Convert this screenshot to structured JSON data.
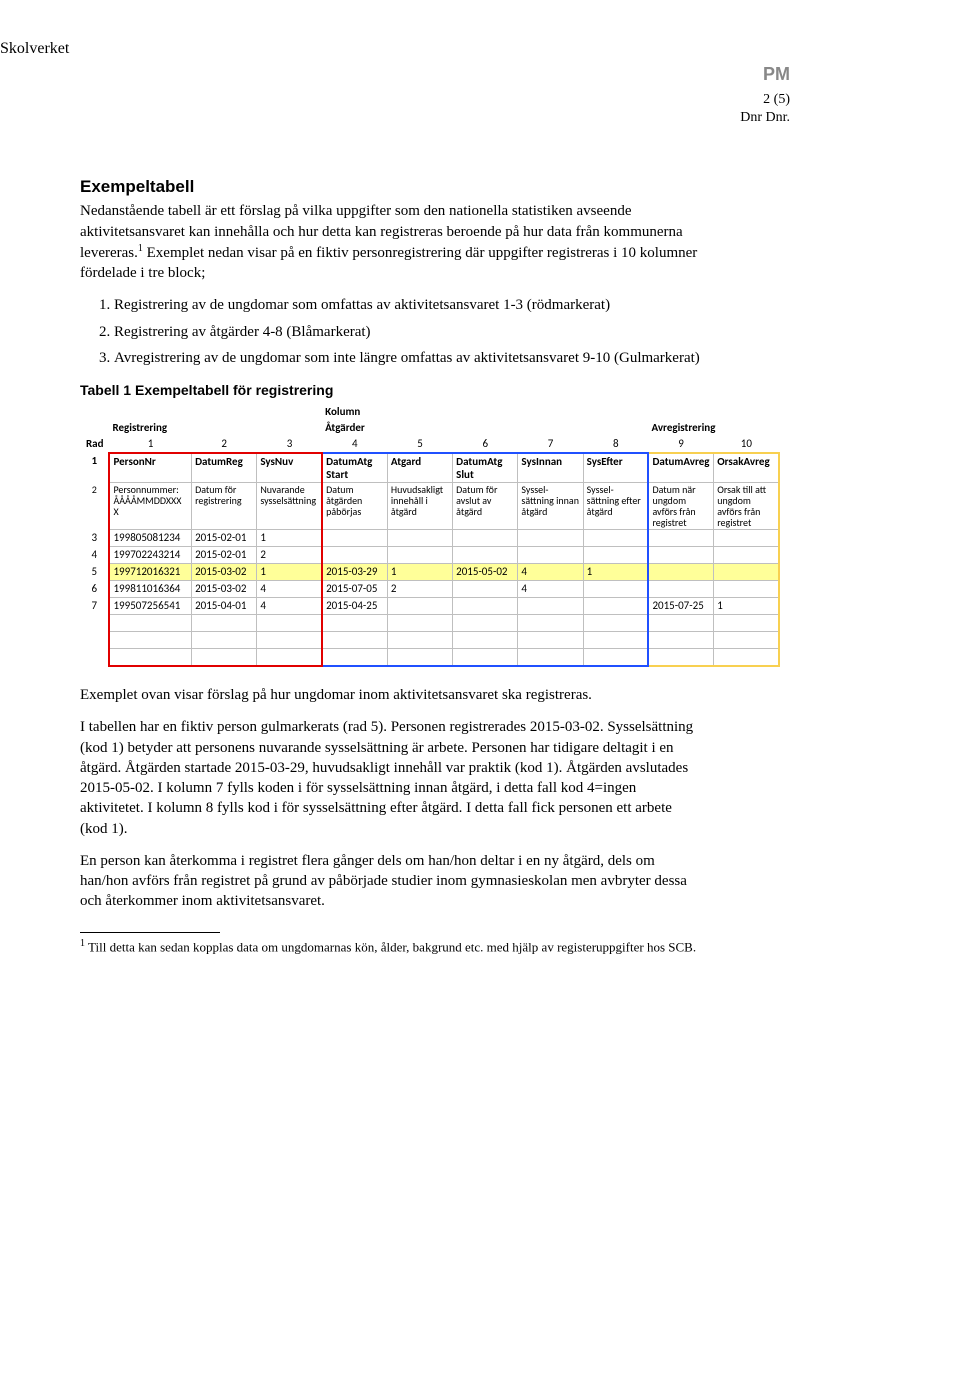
{
  "header": {
    "org": "Skolverket",
    "doctype": "PM",
    "page_indicator": "2 (5)",
    "ref": "Dnr Dnr."
  },
  "section": {
    "title": "Exempeltabell",
    "intro": "Nedanstående tabell är ett förslag på vilka uppgifter som den nationella statistiken avseende aktivitetsansvaret kan innehålla och hur detta kan registreras beroende på hur data från kommunerna levereras.",
    "intro2": " Exemplet nedan visar på en fiktiv personregistrering där uppgifter registreras i 10 kolumner fördelade i tre block;",
    "footref": "1",
    "list": [
      "Registrering av de ungdomar som omfattas av aktivitetsansvaret 1-3 (rödmarkerat)",
      "Registrering av åtgärder 4-8 (Blåmarkerat)",
      "Avregistrering av de ungdomar som inte längre omfattas av aktivitetsansvaret 9-10 (Gulmarkerat)"
    ],
    "caption": "Tabell 1 Exempeltabell för registrering"
  },
  "table": {
    "top_label": "Kolumn",
    "groups": [
      "Registrering",
      "Åtgärder",
      "Avregistrering"
    ],
    "rad_label": "Rad",
    "col_numbers": [
      "1",
      "2",
      "3",
      "4",
      "5",
      "6",
      "7",
      "8",
      "9",
      "10"
    ],
    "headers": [
      "PersonNr",
      "DatumReg",
      "SysNuv",
      "DatumAtg Start",
      "Atgard",
      "DatumAtg Slut",
      "SysInnan",
      "SysEfter",
      "DatumAvreg",
      "OrsakAvreg"
    ],
    "header_row_rad": "1",
    "desc": [
      "Personnummer: ÅÅÅÅMMDDXXX X",
      "Datum för registrering",
      "Nuvarande sysselsättning",
      "Datum åtgärden påbörjas",
      "Huvudsakligt innehåll i åtgärd",
      "Datum för avslut av åtgärd",
      "Syssel-sättning innan åtgärd",
      "Syssel-sättning efter åtgärd",
      "Datum när ungdom avförs från registret",
      "Orsak till att ungdom avförs från registret"
    ],
    "desc_row_rad": "2",
    "rows": [
      {
        "rad": "3",
        "c1": "199805081234",
        "c2": "2015-02-01",
        "c3": "1",
        "c4": "",
        "c5": "",
        "c6": "",
        "c7": "",
        "c8": "",
        "c9": "",
        "c10": ""
      },
      {
        "rad": "4",
        "c1": "199702243214",
        "c2": "2015-02-01",
        "c3": "2",
        "c4": "",
        "c5": "",
        "c6": "",
        "c7": "",
        "c8": "",
        "c9": "",
        "c10": ""
      },
      {
        "rad": "5",
        "c1": "199712016321",
        "c2": "2015-03-02",
        "c3": "1",
        "c4": "2015-03-29",
        "c5": "1",
        "c6": "2015-05-02",
        "c7": "4",
        "c8": "1",
        "c9": "",
        "c10": "",
        "highlight": true
      },
      {
        "rad": "6",
        "c1": "199811016364",
        "c2": "2015-03-02",
        "c3": "4",
        "c4": "2015-07-05",
        "c5": "2",
        "c6": "",
        "c7": "4",
        "c8": "",
        "c9": "",
        "c10": ""
      },
      {
        "rad": "7",
        "c1": "199507256541",
        "c2": "2015-04-01",
        "c3": "4",
        "c4": "2015-04-25",
        "c5": "",
        "c6": "",
        "c7": "",
        "c8": "",
        "c9": "2015-07-25",
        "c10": "1"
      }
    ],
    "empty_rows": 3
  },
  "after": {
    "p1": "Exemplet ovan visar förslag på hur ungdomar inom aktivitetsansvaret ska registreras.",
    "p2": "I tabellen har en fiktiv person gulmarkerats (rad 5). Personen registrerades 2015-03-02. Sysselsättning (kod 1) betyder att personens nuvarande sysselsättning är arbete. Personen har tidigare deltagit i en åtgärd. Åtgärden startade 2015-03-29, huvudsakligt innehåll var praktik (kod 1). Åtgärden avslutades 2015-05-02. I kolumn 7 fylls koden i för sysselsättning innan åtgärd, i detta fall kod 4=ingen aktivitetet. I kolumn 8 fylls kod i för sysselsättning efter åtgärd. I detta fall fick personen ett arbete (kod 1).",
    "p3": "En person kan återkomma i registret flera gånger dels om han/hon deltar i en ny åtgärd, dels om han/hon avförs från registret på grund av påbörjade studier inom gymnasieskolan men avbryter dessa och återkommer inom aktivitetsansvaret."
  },
  "footnote": {
    "mark": "1",
    "text": " Till detta kan sedan kopplas data om ungdomarnas kön, ålder, bakgrund etc. med hjälp av registeruppgifter hos SCB."
  },
  "colors": {
    "red": "#e10000",
    "blue": "#2050ff",
    "yellow_border": "#f8d050",
    "yellow_fill": "#ffff99",
    "grid": "#bfbfbf",
    "pm_gray": "#888888"
  },
  "fonts": {
    "body_family": "Garamond/serif",
    "body_size_pt": 11,
    "heading_family": "Arial",
    "heading_size_pt": 12,
    "table_family": "Calibri",
    "table_size_pt": 8
  }
}
